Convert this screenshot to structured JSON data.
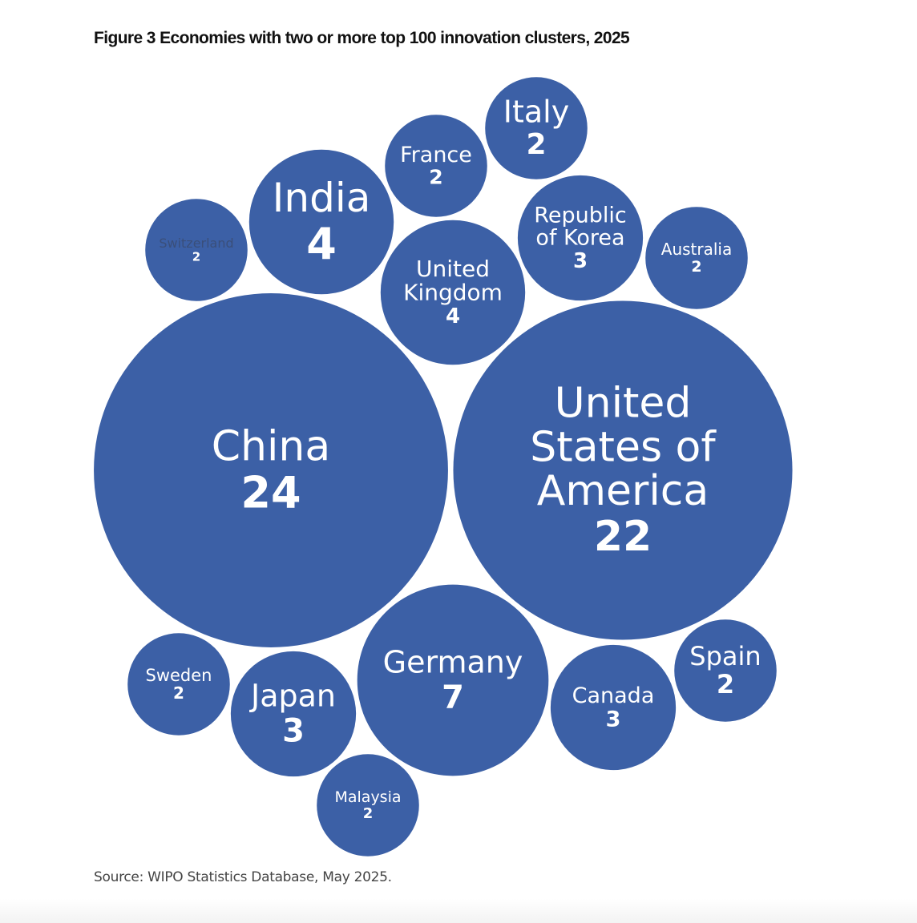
{
  "title": "Figure 3 Economies with two or more top 100 innovation clusters, 2025",
  "source": "Source: WIPO Statistics Database, May 2025.",
  "colors": {
    "bubble": "#3C60A6",
    "label": "#FFFFFF",
    "faded_label": "#3A4F7A"
  },
  "chart_data": {
    "type": "bubble",
    "title": "Figure 3 Economies with two or more top 100 innovation clusters, 2025",
    "items": [
      {
        "label": [
          "China"
        ],
        "value": 24
      },
      {
        "label": [
          "United",
          "States of",
          "America"
        ],
        "value": 22
      },
      {
        "label": [
          "Germany"
        ],
        "value": 7
      },
      {
        "label": [
          "India"
        ],
        "value": 4
      },
      {
        "label": [
          "United",
          "Kingdom"
        ],
        "value": 4
      },
      {
        "label": [
          "Republic",
          "of Korea"
        ],
        "value": 3
      },
      {
        "label": [
          "Japan"
        ],
        "value": 3
      },
      {
        "label": [
          "Canada"
        ],
        "value": 3
      },
      {
        "label": [
          "France"
        ],
        "value": 2
      },
      {
        "label": [
          "Italy"
        ],
        "value": 2
      },
      {
        "label": [
          "Switzerland"
        ],
        "value": 2,
        "faded": true
      },
      {
        "label": [
          "Australia"
        ],
        "value": 2
      },
      {
        "label": [
          "Sweden"
        ],
        "value": 2
      },
      {
        "label": [
          "Malaysia"
        ],
        "value": 2
      },
      {
        "label": [
          "Spain"
        ],
        "value": 2
      }
    ]
  }
}
